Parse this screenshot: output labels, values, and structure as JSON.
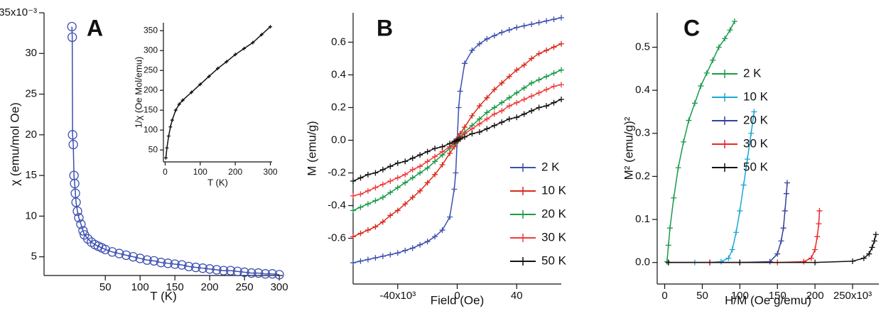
{
  "chart_data": [
    {
      "type": "scatter",
      "annotation": "A",
      "x_label": "T (K)",
      "y_label": "χ (emu/mol Oe)",
      "marker": "circle",
      "color": "#3b4fb0",
      "x": [
        2,
        2.5,
        3,
        4,
        5,
        6,
        7,
        8,
        10,
        12,
        15,
        18,
        20,
        25,
        30,
        35,
        40,
        45,
        50,
        60,
        70,
        80,
        90,
        100,
        110,
        120,
        130,
        140,
        150,
        160,
        170,
        180,
        190,
        200,
        210,
        220,
        230,
        240,
        250,
        260,
        270,
        280,
        290,
        300
      ],
      "values": [
        33.3,
        32,
        20,
        18.8,
        15,
        14,
        12.8,
        11.7,
        10.6,
        9.8,
        9,
        8.2,
        7.7,
        7.2,
        6.8,
        6.5,
        6.3,
        6.1,
        5.9,
        5.6,
        5.4,
        5.2,
        5.0,
        4.8,
        4.6,
        4.5,
        4.3,
        4.2,
        4.1,
        4.0,
        3.8,
        3.7,
        3.6,
        3.5,
        3.4,
        3.3,
        3.3,
        3.2,
        3.1,
        3.0,
        3.0,
        2.9,
        2.9,
        2.8
      ],
      "xlim": [
        -38,
        305
      ],
      "xticks": [
        50,
        100,
        150,
        200,
        250,
        300
      ],
      "ylim": [
        2.7,
        35
      ],
      "yticks": [
        5,
        10,
        15,
        20,
        25,
        30,
        {
          "value": 35,
          "label": "35x10⁻³"
        }
      ]
    },
    {
      "type": "line",
      "x_label": "T (K)",
      "y_label": "1/χ (Oe Mol/emu)",
      "marker": "plus",
      "color": "#111111",
      "x": [
        2,
        5,
        10,
        15,
        20,
        30,
        40,
        50,
        75,
        100,
        125,
        150,
        175,
        200,
        225,
        250,
        275,
        300
      ],
      "values": [
        30,
        55,
        85,
        108,
        125,
        150,
        165,
        175,
        195,
        215,
        235,
        255,
        272,
        290,
        305,
        320,
        340,
        360
      ],
      "xlim": [
        -5,
        305
      ],
      "xticks": [
        0,
        100,
        200,
        300
      ],
      "ylim": [
        20,
        370
      ],
      "yticks": [
        50,
        100,
        150,
        200,
        250,
        300,
        350
      ]
    },
    {
      "type": "line",
      "annotation": "B",
      "x_label": "Field (Oe)",
      "y_label": "M (emu/g)",
      "marker": "plus",
      "x": [
        -70000,
        -65000,
        -60000,
        -55000,
        -50000,
        -45000,
        -40000,
        -35000,
        -30000,
        -25000,
        -20000,
        -15000,
        -10000,
        -5000,
        -2000,
        -1000,
        0,
        1000,
        2000,
        5000,
        10000,
        15000,
        20000,
        25000,
        30000,
        35000,
        40000,
        45000,
        50000,
        55000,
        60000,
        65000,
        70000
      ],
      "series": [
        {
          "name": "2 K",
          "color": "#3b4fb0",
          "values": [
            -0.75,
            -0.74,
            -0.73,
            -0.72,
            -0.71,
            -0.7,
            -0.69,
            -0.675,
            -0.66,
            -0.64,
            -0.62,
            -0.59,
            -0.55,
            -0.47,
            -0.3,
            -0.2,
            0,
            0.2,
            0.3,
            0.47,
            0.55,
            0.59,
            0.62,
            0.64,
            0.66,
            0.675,
            0.69,
            0.7,
            0.71,
            0.72,
            0.73,
            0.74,
            0.75
          ]
        },
        {
          "name": "10 K",
          "color": "#d92a1c",
          "values": [
            -0.59,
            -0.57,
            -0.55,
            -0.53,
            -0.5,
            -0.46,
            -0.43,
            -0.39,
            -0.35,
            -0.31,
            -0.26,
            -0.21,
            -0.15,
            -0.08,
            -0.04,
            -0.02,
            0,
            0.02,
            0.04,
            0.08,
            0.15,
            0.21,
            0.26,
            0.31,
            0.35,
            0.39,
            0.43,
            0.46,
            0.5,
            0.53,
            0.55,
            0.57,
            0.59
          ]
        },
        {
          "name": "20 K",
          "color": "#1a9a48",
          "values": [
            -0.43,
            -0.41,
            -0.39,
            -0.37,
            -0.35,
            -0.32,
            -0.29,
            -0.26,
            -0.23,
            -0.2,
            -0.17,
            -0.13,
            -0.09,
            -0.05,
            -0.02,
            -0.01,
            0,
            0.01,
            0.02,
            0.05,
            0.09,
            0.13,
            0.17,
            0.2,
            0.23,
            0.26,
            0.29,
            0.32,
            0.35,
            0.37,
            0.39,
            0.41,
            0.43
          ]
        },
        {
          "name": "30 K",
          "color": "#f03c3c",
          "values": [
            -0.34,
            -0.33,
            -0.31,
            -0.29,
            -0.27,
            -0.25,
            -0.23,
            -0.21,
            -0.18,
            -0.16,
            -0.13,
            -0.1,
            -0.07,
            -0.04,
            -0.015,
            -0.008,
            0,
            0.008,
            0.015,
            0.04,
            0.07,
            0.1,
            0.13,
            0.16,
            0.18,
            0.21,
            0.23,
            0.25,
            0.27,
            0.29,
            0.31,
            0.33,
            0.34
          ]
        },
        {
          "name": "50 K",
          "color": "#111111",
          "values": [
            -0.25,
            -0.23,
            -0.21,
            -0.2,
            -0.18,
            -0.16,
            -0.14,
            -0.13,
            -0.11,
            -0.09,
            -0.07,
            -0.05,
            -0.04,
            -0.02,
            -0.007,
            -0.004,
            0,
            0.004,
            0.007,
            0.02,
            0.04,
            0.05,
            0.07,
            0.09,
            0.11,
            0.13,
            0.14,
            0.16,
            0.18,
            0.2,
            0.21,
            0.23,
            0.25
          ]
        }
      ],
      "xlim": [
        -70000,
        70000
      ],
      "xticks": [
        {
          "value": -40000,
          "label": "-40x10³"
        },
        0,
        {
          "value": 40000,
          "label": "40"
        }
      ],
      "ylim": [
        -0.88,
        0.78
      ],
      "yticks": [
        -0.6,
        -0.4,
        -0.2,
        {
          "value": 0,
          "label": "0.0"
        },
        0.2,
        0.4,
        0.6
      ]
    },
    {
      "type": "line",
      "annotation": "C",
      "x_label": "H/M (Oe g/emu)",
      "y_label": "M² (emu/g)²",
      "marker": "plus",
      "series": [
        {
          "name": "2 K",
          "color": "#1a9a4a",
          "x": [
            3000,
            5000,
            7000,
            12000,
            18000,
            25000,
            32000,
            40000,
            48000,
            56000,
            64000,
            72000,
            80000,
            87000,
            93000
          ],
          "values": [
            0.002,
            0.04,
            0.08,
            0.15,
            0.22,
            0.28,
            0.33,
            0.37,
            0.41,
            0.44,
            0.47,
            0.5,
            0.52,
            0.54,
            0.56
          ]
        },
        {
          "name": "10 K",
          "color": "#1aa7d4",
          "x": [
            5000,
            40000,
            60000,
            75000,
            85000,
            90000,
            95000,
            100000,
            105000,
            110000,
            115000,
            119000
          ],
          "values": [
            0,
            0,
            0,
            0.002,
            0.01,
            0.03,
            0.07,
            0.12,
            0.18,
            0.24,
            0.3,
            0.35
          ]
        },
        {
          "name": "20 K",
          "color": "#34429a",
          "x": [
            5000,
            60000,
            100000,
            140000,
            150000,
            155000,
            158000,
            160000,
            162000,
            163000
          ],
          "values": [
            0,
            0,
            0,
            0.002,
            0.02,
            0.05,
            0.08,
            0.12,
            0.16,
            0.185
          ]
        },
        {
          "name": "30 K",
          "color": "#e8282a",
          "x": [
            5000,
            60000,
            150000,
            185000,
            195000,
            200000,
            203000,
            205000,
            206000
          ],
          "values": [
            0,
            0,
            0,
            0.002,
            0.01,
            0.03,
            0.06,
            0.09,
            0.12
          ]
        },
        {
          "name": "50 K",
          "color": "#111111",
          "x": [
            5000,
            100000,
            200000,
            250000,
            265000,
            272000,
            276000,
            279000,
            281000
          ],
          "values": [
            0,
            0,
            0,
            0.003,
            0.01,
            0.02,
            0.035,
            0.05,
            0.065
          ]
        }
      ],
      "xlim": [
        -10000,
        285000
      ],
      "xticks": [
        0,
        {
          "value": 50000,
          "label": "50"
        },
        {
          "value": 100000,
          "label": "100"
        },
        {
          "value": 150000,
          "label": "150"
        },
        {
          "value": 200000,
          "label": "200"
        },
        {
          "value": 250000,
          "label": "250x10³"
        }
      ],
      "ylim": [
        -0.05,
        0.58
      ],
      "yticks": [
        {
          "value": 0,
          "label": "0.0"
        },
        0.1,
        0.2,
        0.3,
        0.4,
        0.5
      ]
    }
  ]
}
